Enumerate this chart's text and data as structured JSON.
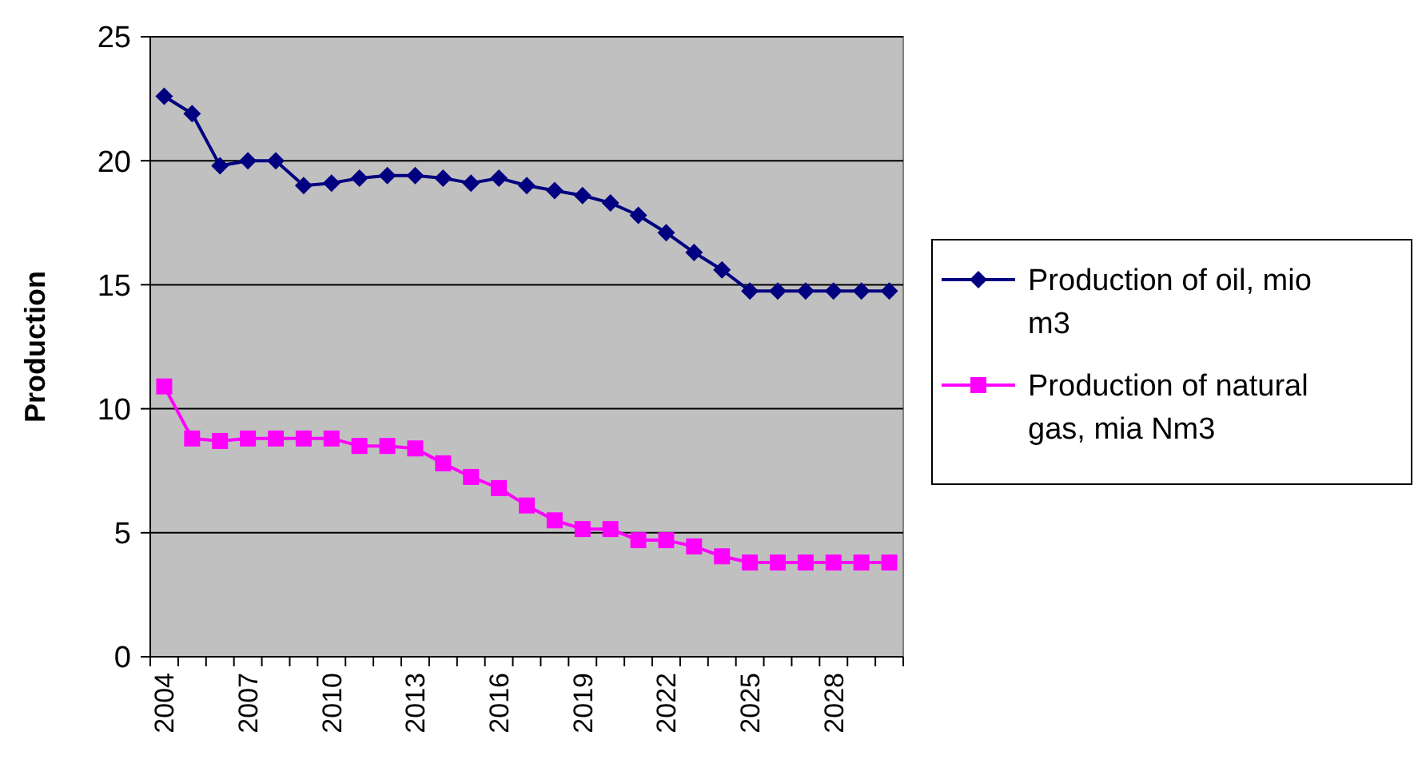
{
  "chart_data": {
    "type": "line",
    "ylabel": "Production",
    "categories": [
      "2004",
      null,
      null,
      "2007",
      null,
      null,
      "2010",
      null,
      null,
      "2013",
      null,
      null,
      "2016",
      null,
      null,
      "2019",
      null,
      null,
      "2022",
      null,
      null,
      "2025",
      null,
      null,
      "2028",
      null,
      null
    ],
    "series": [
      {
        "name": "Production of oil, mio m3",
        "color": "#000080",
        "marker": "diamond",
        "values": [
          22.6,
          21.9,
          19.8,
          20.0,
          20.0,
          19.0,
          19.1,
          19.3,
          19.4,
          19.4,
          19.3,
          19.1,
          19.3,
          19.0,
          18.8,
          18.6,
          18.3,
          17.8,
          17.1,
          16.3,
          15.6,
          14.75,
          14.75,
          14.75,
          14.75,
          14.75,
          14.75
        ]
      },
      {
        "name": "Production of natural gas, mia Nm3",
        "color": "#ff00ff",
        "marker": "square",
        "values": [
          10.9,
          8.8,
          8.7,
          8.8,
          8.8,
          8.8,
          8.8,
          8.5,
          8.5,
          8.4,
          7.8,
          7.25,
          6.8,
          6.1,
          5.5,
          5.15,
          5.15,
          4.7,
          4.7,
          4.45,
          4.05,
          3.8,
          3.8,
          3.8,
          3.8,
          3.8,
          3.8
        ]
      }
    ],
    "ylim": [
      0,
      25
    ],
    "yticks": [
      0,
      5,
      10,
      15,
      20,
      25
    ],
    "grid": "y",
    "legend": "right"
  }
}
